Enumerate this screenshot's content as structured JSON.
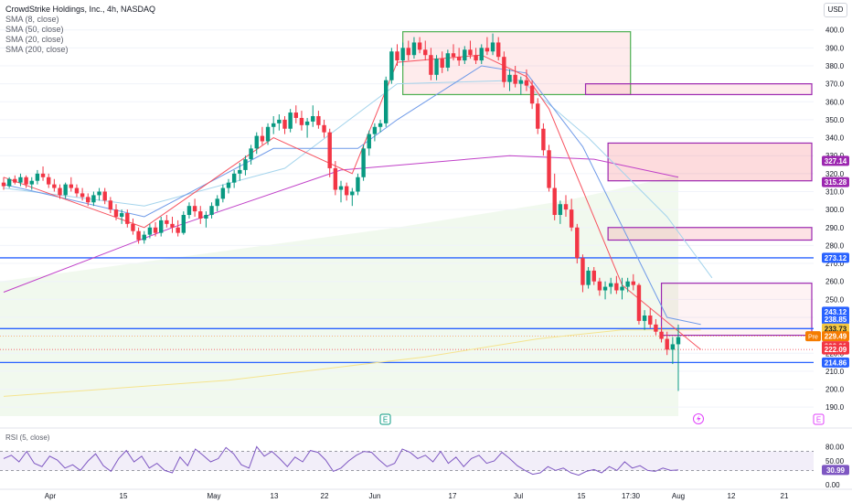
{
  "legend": {
    "title": "CrowdStrike Holdings, Inc., 4h, NASDAQ",
    "lines": [
      "SMA (8, close)",
      "SMA (50, close)",
      "SMA (20, close)",
      "SMA (200, close)"
    ]
  },
  "currency_button": "USD",
  "rsi_legend": "RSI (5, close)",
  "colors": {
    "up": "#089981",
    "down": "#f23645",
    "sma8": "#f7525f",
    "sma20": "#6f9ae8",
    "sma50": "#a4d4ec",
    "sma200": "#c040c8",
    "hline": "#2962ff",
    "box_green": "#4caf50",
    "box_purple": "#9c27b0",
    "yellow_line": "#f5e48f",
    "rsi": "#7e57c2"
  },
  "chart_data": [
    {
      "type": "candlestick",
      "title": "CrowdStrike Holdings, Inc., 4h, NASDAQ",
      "ylim": [
        185,
        408
      ],
      "y_ticks": [
        400,
        390,
        380,
        370,
        360,
        350,
        340,
        330,
        320,
        310,
        300,
        290,
        280,
        270,
        260,
        250,
        240,
        230,
        220,
        210,
        200,
        190
      ],
      "x_ticks": [
        "Apr",
        "15",
        "May",
        "13",
        "22",
        "Jun",
        "17",
        "Jul",
        "15",
        "17:30",
        "Aug",
        "12",
        "21"
      ],
      "candles": [
        [
          315,
          318,
          311,
          313
        ],
        [
          313,
          318,
          312,
          317
        ],
        [
          317,
          319,
          314,
          315
        ],
        [
          315,
          320,
          313,
          318
        ],
        [
          318,
          319,
          312,
          314
        ],
        [
          314,
          318,
          311,
          316
        ],
        [
          316,
          322,
          314,
          320
        ],
        [
          320,
          324,
          316,
          318
        ],
        [
          318,
          320,
          312,
          314
        ],
        [
          314,
          317,
          310,
          312
        ],
        [
          312,
          314,
          306,
          308
        ],
        [
          308,
          315,
          306,
          314
        ],
        [
          314,
          318,
          310,
          312
        ],
        [
          312,
          314,
          307,
          309
        ],
        [
          309,
          312,
          305,
          307
        ],
        [
          307,
          309,
          302,
          304
        ],
        [
          304,
          310,
          302,
          308
        ],
        [
          308,
          312,
          305,
          310
        ],
        [
          310,
          312,
          303,
          305
        ],
        [
          305,
          307,
          298,
          300
        ],
        [
          300,
          303,
          294,
          296
        ],
        [
          296,
          300,
          292,
          298
        ],
        [
          298,
          300,
          290,
          292
        ],
        [
          292,
          295,
          286,
          288
        ],
        [
          288,
          290,
          281,
          283
        ],
        [
          283,
          288,
          281,
          286
        ],
        [
          286,
          292,
          284,
          290
        ],
        [
          290,
          293,
          285,
          287
        ],
        [
          287,
          296,
          285,
          294
        ],
        [
          294,
          297,
          290,
          292
        ],
        [
          292,
          296,
          287,
          290
        ],
        [
          290,
          294,
          285,
          287
        ],
        [
          287,
          299,
          286,
          297
        ],
        [
          297,
          304,
          295,
          302
        ],
        [
          302,
          306,
          296,
          299
        ],
        [
          299,
          302,
          292,
          295
        ],
        [
          295,
          299,
          290,
          297
        ],
        [
          297,
          304,
          295,
          302
        ],
        [
          302,
          308,
          299,
          306
        ],
        [
          306,
          314,
          304,
          312
        ],
        [
          312,
          317,
          309,
          315
        ],
        [
          315,
          322,
          312,
          320
        ],
        [
          320,
          326,
          316,
          322
        ],
        [
          322,
          330,
          319,
          328
        ],
        [
          328,
          336,
          325,
          334
        ],
        [
          334,
          343,
          331,
          341
        ],
        [
          341,
          346,
          336,
          338
        ],
        [
          338,
          348,
          336,
          346
        ],
        [
          346,
          352,
          342,
          348
        ],
        [
          348,
          353,
          344,
          350
        ],
        [
          350,
          352,
          342,
          345
        ],
        [
          345,
          356,
          343,
          354
        ],
        [
          354,
          358,
          348,
          351
        ],
        [
          351,
          355,
          344,
          347
        ],
        [
          347,
          351,
          340,
          349
        ],
        [
          349,
          358,
          346,
          352
        ],
        [
          352,
          355,
          345,
          347
        ],
        [
          347,
          350,
          340,
          343
        ],
        [
          343,
          345,
          318,
          323
        ],
        [
          323,
          327,
          308,
          311
        ],
        [
          311,
          316,
          304,
          313
        ],
        [
          313,
          315,
          305,
          308
        ],
        [
          308,
          312,
          302,
          310
        ],
        [
          310,
          320,
          308,
          318
        ],
        [
          318,
          336,
          316,
          334
        ],
        [
          334,
          344,
          330,
          342
        ],
        [
          342,
          348,
          338,
          346
        ],
        [
          346,
          350,
          343,
          348
        ],
        [
          348,
          374,
          346,
          372
        ],
        [
          372,
          390,
          370,
          388
        ],
        [
          388,
          392,
          380,
          383
        ],
        [
          383,
          393,
          380,
          390
        ],
        [
          390,
          394,
          383,
          386
        ],
        [
          386,
          396,
          384,
          393
        ],
        [
          393,
          396,
          387,
          389
        ],
        [
          389,
          394,
          383,
          386
        ],
        [
          386,
          390,
          372,
          375
        ],
        [
          375,
          386,
          372,
          384
        ],
        [
          384,
          388,
          376,
          379
        ],
        [
          379,
          389,
          377,
          387
        ],
        [
          387,
          392,
          383,
          385
        ],
        [
          385,
          390,
          380,
          383
        ],
        [
          383,
          391,
          381,
          389
        ],
        [
          389,
          394,
          384,
          386
        ],
        [
          386,
          390,
          381,
          383
        ],
        [
          383,
          392,
          381,
          390
        ],
        [
          390,
          396,
          386,
          388
        ],
        [
          388,
          398,
          386,
          393
        ],
        [
          393,
          396,
          383,
          385
        ],
        [
          385,
          388,
          368,
          371
        ],
        [
          371,
          378,
          366,
          375
        ],
        [
          375,
          380,
          368,
          370
        ],
        [
          370,
          374,
          364,
          372
        ],
        [
          372,
          378,
          366,
          369
        ],
        [
          369,
          372,
          356,
          359
        ],
        [
          359,
          362,
          342,
          345
        ],
        [
          345,
          348,
          330,
          333
        ],
        [
          333,
          336,
          310,
          312
        ],
        [
          312,
          320,
          294,
          297
        ],
        [
          297,
          305,
          292,
          303
        ],
        [
          303,
          308,
          296,
          300
        ],
        [
          300,
          306,
          288,
          290
        ],
        [
          290,
          292,
          270,
          273
        ],
        [
          273,
          275,
          254,
          258
        ],
        [
          258,
          268,
          256,
          266
        ],
        [
          266,
          268,
          258,
          260
        ],
        [
          260,
          262,
          252,
          255
        ],
        [
          255,
          260,
          250,
          257
        ],
        [
          257,
          262,
          253,
          259
        ],
        [
          259,
          263,
          253,
          255
        ],
        [
          255,
          262,
          250,
          257
        ],
        [
          257,
          262,
          254,
          260
        ],
        [
          260,
          264,
          255,
          258
        ],
        [
          258,
          259,
          236,
          238
        ],
        [
          238,
          244,
          233,
          241
        ],
        [
          241,
          245,
          234,
          236
        ],
        [
          236,
          239,
          230,
          232
        ],
        [
          232,
          235,
          226,
          228
        ],
        [
          228,
          232,
          219,
          222
        ],
        [
          222,
          229,
          214,
          225
        ],
        [
          225,
          236,
          199,
          229
        ]
      ],
      "sma8": [
        [
          0,
          318
        ],
        [
          25,
          290
        ],
        [
          48,
          340
        ],
        [
          62,
          320
        ],
        [
          70,
          382
        ],
        [
          85,
          386
        ],
        [
          93,
          374
        ],
        [
          97,
          356
        ],
        [
          110,
          258
        ],
        [
          124,
          222
        ]
      ],
      "sma20": [
        [
          0,
          314
        ],
        [
          25,
          296
        ],
        [
          48,
          334
        ],
        [
          63,
          334
        ],
        [
          70,
          350
        ],
        [
          85,
          380
        ],
        [
          93,
          376
        ],
        [
          103,
          335
        ],
        [
          118,
          240
        ],
        [
          124,
          236
        ]
      ],
      "sma50": [
        [
          0,
          312
        ],
        [
          25,
          302
        ],
        [
          50,
          323
        ],
        [
          70,
          370
        ],
        [
          92,
          372
        ],
        [
          104,
          340
        ],
        [
          118,
          296
        ],
        [
          126,
          262
        ]
      ],
      "sma200": [
        [
          0,
          254
        ],
        [
          30,
          290
        ],
        [
          60,
          322
        ],
        [
          90,
          330
        ],
        [
          105,
          328
        ],
        [
          120,
          318
        ]
      ],
      "yellow_line": [
        [
          0,
          196
        ],
        [
          40,
          205
        ],
        [
          75,
          218
        ],
        [
          95,
          228
        ],
        [
          110,
          233
        ],
        [
          124,
          233
        ]
      ],
      "horizontal_lines": [
        273.12,
        233.73,
        214.86
      ],
      "dotted_level": 222.09,
      "boxes_price_ranges": [
        [
          364,
          399
        ],
        [
          364,
          370
        ],
        [
          316,
          337
        ],
        [
          283,
          290
        ],
        [
          230,
          259
        ]
      ],
      "price_labels": [
        {
          "value": 327.14,
          "text": "327.14",
          "color": "#9c27b0"
        },
        {
          "value": 315.28,
          "text": "315.28",
          "color": "#9c27b0"
        },
        {
          "value": 273.12,
          "text": "273.12",
          "color": "#2962ff"
        },
        {
          "value": 243.12,
          "text": "243.12",
          "color": "#2962ff"
        },
        {
          "value": 238.85,
          "text": "238.85",
          "color": "#2962ff"
        },
        {
          "value": 233.73,
          "text": "233.73",
          "color": "#f5c842"
        },
        {
          "value": 229.49,
          "text": "229.49",
          "color": "#f57c00"
        },
        {
          "value": 223.91,
          "text": "223.91",
          "color": "#f23645"
        },
        {
          "value": 222.09,
          "text": "222.09",
          "color": "#f23645"
        },
        {
          "value": 214.86,
          "text": "214.86",
          "color": "#2962ff"
        }
      ],
      "pre_label": "Pre",
      "event_markers": [
        "E",
        "E"
      ]
    },
    {
      "type": "line",
      "title": "RSI (5, close)",
      "ylim": [
        0,
        100
      ],
      "y_ticks": [
        80.0,
        50.0,
        0.0
      ],
      "y_tick_labels": [
        "80.00",
        "50.00",
        "0.00"
      ],
      "current_value_label": "30.99",
      "levels": [
        70,
        30
      ],
      "values": [
        55,
        62,
        48,
        70,
        45,
        38,
        60,
        52,
        35,
        42,
        30,
        50,
        65,
        40,
        28,
        55,
        72,
        48,
        60,
        35,
        45,
        30,
        25,
        58,
        40,
        75,
        62,
        48,
        55,
        78,
        65,
        42,
        35,
        80,
        60,
        70,
        55,
        38,
        58,
        48,
        72,
        68,
        52,
        28,
        35,
        50,
        62,
        70,
        68,
        52,
        38,
        45,
        75,
        68,
        55,
        62,
        48,
        70,
        45,
        58,
        38,
        55,
        62,
        45,
        50,
        68,
        55,
        40,
        30,
        22,
        25,
        38,
        30,
        35,
        25,
        20,
        28,
        32,
        25,
        38,
        30,
        48,
        35,
        40,
        30,
        28,
        35,
        30,
        31
      ]
    }
  ]
}
